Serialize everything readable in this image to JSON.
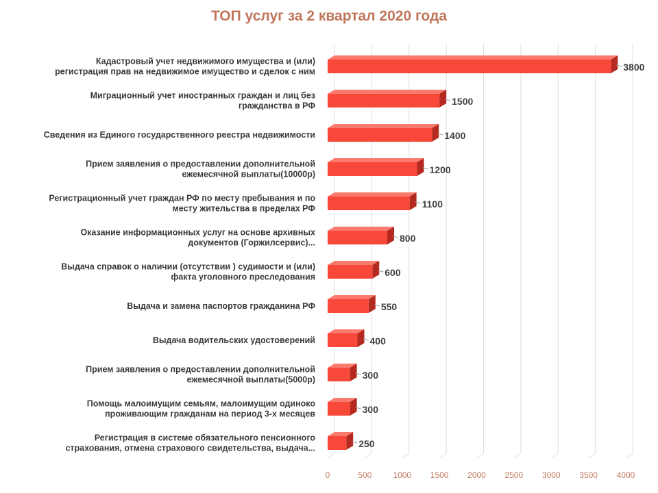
{
  "chart_data": {
    "type": "bar",
    "orientation": "horizontal",
    "title": "ТОП услуг за 2 квартал 2020 года",
    "xlabel": "",
    "ylabel": "",
    "xlim": [
      0,
      4000
    ],
    "ticks": [
      0,
      500,
      1000,
      1500,
      2000,
      2500,
      3000,
      3500,
      4000
    ],
    "grid": true,
    "legend": "none",
    "colors": {
      "bar_front": "#f8483a",
      "bar_top": "#fb7a6e",
      "bar_side": "#b52a20",
      "title": "#c0765a",
      "tick": "#c0765a",
      "grid": "#e6dcd6"
    },
    "categories": [
      [
        "Кадастровый учет недвижимого имущества и (или)",
        "регистрация прав на недвижимое имущество и сделок с ним"
      ],
      [
        "Миграционный учет иностранных граждан и лиц без",
        "гражданства в РФ"
      ],
      [
        "Сведения из Единого государственного реестра недвижимости"
      ],
      [
        "Прием заявления о предоставлении дополнительной",
        "ежемесячной выплаты(10000р)"
      ],
      [
        "Регистрационный учет граждан РФ по месту пребывания и по",
        "месту жительства в пределах РФ"
      ],
      [
        "Оказание информационных услуг на основе архивных",
        "документов (Горжилсервис)..."
      ],
      [
        "Выдача справок о наличии (отсутствии ) судимости и (или)",
        "факта уголовного преследования"
      ],
      [
        "Выдача и замена паспортов гражданина РФ"
      ],
      [
        "Выдача водительских удостоверений"
      ],
      [
        "Прием заявления о предоставлении дополнительной",
        "ежемесячной выплаты(5000р)"
      ],
      [
        "Помощь малоимущим семьям, малоимущим одиноко",
        "проживающим гражданам на период 3-х месяцев"
      ],
      [
        "Регистрация в системе обязательного пенсионного",
        "страхования, отмена страхового свидетельства, выдача..."
      ]
    ],
    "values": [
      3800,
      1500,
      1400,
      1200,
      1100,
      800,
      600,
      550,
      400,
      300,
      300,
      250
    ]
  }
}
